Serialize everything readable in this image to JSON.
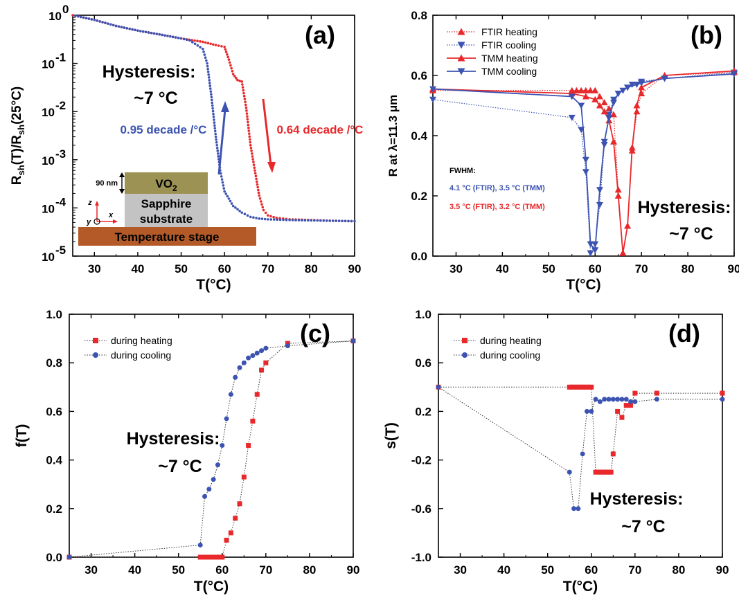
{
  "colors": {
    "heating": "#e8282b",
    "cooling": "#3c53b2",
    "stage": "#b45a28",
    "vo2": "#9b9253",
    "sapphire": "#c3c3c3",
    "axis": "#000000"
  },
  "figure": {
    "a": {
      "panel_label": "(a)",
      "xlabel": "T(°C)",
      "ylabel_main": "R",
      "ylabel_sub1": "sh",
      "ylabel_mid": "(T)/R",
      "ylabel_sub2": "sh",
      "ylabel_end": "(25°C)",
      "xtick_labels": [
        "30",
        "40",
        "50",
        "60",
        "70",
        "80",
        "90"
      ],
      "ytick_base": "10",
      "ytick_exponents": [
        "0",
        "-1",
        "-2",
        "-3",
        "-4",
        "-5"
      ],
      "hysteresis_line1": "Hysteresis:",
      "hysteresis_line2": "~7 °C",
      "cooling_rate": "0.95 decade /°C",
      "heating_rate": "0.64 decade /°C",
      "inset": {
        "thickness": "90 nm",
        "vo2_label": "VO",
        "vo2_sub": "2",
        "sapphire_line1": "Sapphire",
        "sapphire_line2": "substrate",
        "stage_label": "Temperature stage",
        "axis_z": "z",
        "axis_x": "x",
        "axis_y": "y"
      }
    },
    "b": {
      "panel_label": "(b)",
      "xlabel": "T(°C)",
      "ylabel": "R at λ=11.3 μm",
      "xtick_labels": [
        "30",
        "40",
        "50",
        "60",
        "70",
        "80",
        "90"
      ],
      "ytick_labels": [
        "0.0",
        "0.2",
        "0.4",
        "0.6",
        "0.8"
      ],
      "legend": [
        "FTIR heating",
        "FTIR cooling",
        "TMM heating",
        "TMM  cooling"
      ],
      "fwhm_title": "FWHM:",
      "fwhm_cooling": "4.1 °C (FTIR), 3.5 °C (TMM)",
      "fwhm_heating": "3.5 °C (FTIR), 3.2 °C (TMM)",
      "hysteresis_line1": "Hysteresis:",
      "hysteresis_line2": "~7 °C"
    },
    "c": {
      "panel_label": "(c)",
      "xlabel": "T(°C)",
      "ylabel": "f(T)",
      "xtick_labels": [
        "30",
        "40",
        "50",
        "60",
        "70",
        "80",
        "90"
      ],
      "ytick_labels": [
        "0.0",
        "0.2",
        "0.4",
        "0.6",
        "0.8",
        "1.0"
      ],
      "legend": [
        "during heating",
        "during cooling"
      ],
      "hysteresis_line1": "Hysteresis:",
      "hysteresis_line2": "~7 °C"
    },
    "d": {
      "panel_label": "(d)",
      "xlabel": "T(°C)",
      "ylabel": "s(T)",
      "xtick_labels": [
        "30",
        "40",
        "50",
        "60",
        "70",
        "80",
        "90"
      ],
      "ytick_labels": [
        "-1.0",
        "-0.6",
        "-0.2",
        "0.2",
        "0.6",
        "1.0"
      ],
      "legend": [
        "during heating",
        "during cooling"
      ],
      "hysteresis_line1": "Hysteresis:",
      "hysteresis_line2": "~7 °C"
    }
  },
  "chart_data": [
    {
      "id": "a",
      "type": "scatter",
      "yscale": "log",
      "xlim": [
        25,
        90
      ],
      "ylim": [
        1e-05,
        1
      ],
      "xlabel": "T(°C)",
      "ylabel": "Rsh(T)/Rsh(25°C)",
      "series": [
        {
          "name": "heating",
          "color": "#e8282b",
          "x": [
            25,
            30,
            35,
            40,
            45,
            50,
            55,
            58,
            60,
            61,
            62,
            63,
            64,
            65,
            66,
            67,
            68,
            69,
            70,
            72,
            75,
            80,
            85,
            90
          ],
          "y": [
            1,
            0.8,
            0.6,
            0.48,
            0.4,
            0.33,
            0.28,
            0.24,
            0.22,
            0.12,
            0.06,
            0.045,
            0.042,
            0.012,
            0.002,
            0.0006,
            0.00018,
            9e-05,
            7e-05,
            6.2e-05,
            5.8e-05,
            5.6e-05,
            5.4e-05,
            5.3e-05
          ]
        },
        {
          "name": "cooling",
          "color": "#3c53b2",
          "x": [
            90,
            85,
            80,
            75,
            70,
            68,
            66,
            64,
            62,
            60,
            59,
            58,
            57,
            56,
            55,
            52,
            50,
            45,
            40,
            35,
            30,
            25
          ],
          "y": [
            5.3e-05,
            5.4e-05,
            5.5e-05,
            5.6e-05,
            5.8e-05,
            6e-05,
            6.5e-05,
            8e-05,
            0.00011,
            0.00022,
            0.0006,
            0.003,
            0.02,
            0.1,
            0.2,
            0.3,
            0.33,
            0.4,
            0.48,
            0.6,
            0.8,
            1
          ]
        }
      ]
    },
    {
      "id": "b",
      "type": "line",
      "xlim": [
        25,
        90
      ],
      "ylim": [
        0,
        0.8
      ],
      "xlabel": "T(°C)",
      "ylabel": "R at λ=11.3 μm",
      "series": [
        {
          "name": "FTIR heating",
          "color": "#e8282b",
          "style": "dotted",
          "x": [
            25,
            55,
            56,
            57,
            58,
            59,
            60,
            61,
            62,
            63,
            64,
            65,
            66,
            67,
            68,
            69,
            70,
            75,
            90
          ],
          "y": [
            0.55,
            0.55,
            0.55,
            0.55,
            0.55,
            0.55,
            0.55,
            0.53,
            0.51,
            0.49,
            0.47,
            0.22,
            0.01,
            0.1,
            0.35,
            0.48,
            0.54,
            0.6,
            0.61
          ]
        },
        {
          "name": "FTIR cooling",
          "color": "#3c53b2",
          "style": "dotted",
          "x": [
            90,
            75,
            70,
            69,
            68,
            67,
            66,
            65,
            64,
            63,
            62,
            61,
            60,
            59,
            58,
            57,
            55,
            25
          ],
          "y": [
            0.61,
            0.59,
            0.58,
            0.57,
            0.57,
            0.56,
            0.55,
            0.54,
            0.52,
            0.47,
            0.37,
            0.17,
            0.04,
            0.01,
            0.28,
            0.42,
            0.46,
            0.52
          ]
        },
        {
          "name": "TMM heating",
          "color": "#e8282b",
          "style": "solid",
          "x": [
            25,
            55,
            58,
            60,
            61,
            62,
            63,
            64,
            65,
            66,
            67,
            68,
            69,
            70,
            75,
            90
          ],
          "y": [
            0.555,
            0.54,
            0.53,
            0.52,
            0.5,
            0.48,
            0.45,
            0.38,
            0.2,
            0.01,
            0.1,
            0.36,
            0.5,
            0.56,
            0.6,
            0.615
          ]
        },
        {
          "name": "TMM  cooling",
          "color": "#3c53b2",
          "style": "solid",
          "x": [
            90,
            75,
            70,
            67,
            65,
            64,
            63,
            62,
            61,
            60,
            59,
            58,
            57,
            55,
            25
          ],
          "y": [
            0.605,
            0.59,
            0.575,
            0.56,
            0.54,
            0.51,
            0.46,
            0.38,
            0.22,
            0.02,
            0.04,
            0.32,
            0.5,
            0.53,
            0.555
          ]
        }
      ],
      "legend_position": "top-left"
    },
    {
      "id": "c",
      "type": "line",
      "xlim": [
        25,
        90
      ],
      "ylim": [
        0,
        1.0
      ],
      "xlabel": "T(°C)",
      "ylabel": "f(T)",
      "series": [
        {
          "name": "during heating",
          "color": "#e8282b",
          "marker": "square",
          "x": [
            25,
            55,
            55.5,
            56,
            56.5,
            57,
            57.5,
            58,
            58.5,
            59,
            59.5,
            60,
            61,
            62,
            63,
            64,
            65,
            66,
            67,
            68,
            69,
            70,
            75,
            90
          ],
          "y": [
            0,
            0,
            0,
            0,
            0,
            0,
            0,
            0,
            0,
            0,
            0,
            0,
            0.07,
            0.1,
            0.16,
            0.22,
            0.33,
            0.46,
            0.56,
            0.67,
            0.77,
            0.8,
            0.88,
            0.89
          ]
        },
        {
          "name": "during cooling",
          "color": "#3c53b2",
          "marker": "circle",
          "x": [
            90,
            75,
            70,
            69,
            68,
            67,
            66,
            65,
            64,
            63,
            62,
            61,
            60,
            59,
            58,
            57,
            56,
            55,
            25
          ],
          "y": [
            0.89,
            0.87,
            0.86,
            0.85,
            0.84,
            0.83,
            0.82,
            0.8,
            0.78,
            0.74,
            0.67,
            0.57,
            0.46,
            0.38,
            0.32,
            0.28,
            0.25,
            0.05,
            0
          ]
        }
      ],
      "legend_position": "top-left"
    },
    {
      "id": "d",
      "type": "line",
      "xlim": [
        25,
        90
      ],
      "ylim": [
        -1.0,
        1.0
      ],
      "xlabel": "T(°C)",
      "ylabel": "s(T)",
      "series": [
        {
          "name": "during heating",
          "color": "#e8282b",
          "marker": "square",
          "x": [
            25,
            55,
            55.5,
            56,
            56.5,
            57,
            57.5,
            58,
            58.5,
            59,
            59.5,
            60,
            61,
            61.5,
            62,
            62.5,
            63,
            63.5,
            64,
            64.5,
            65,
            66,
            67,
            68,
            69,
            70,
            75,
            90
          ],
          "y": [
            0.4,
            0.4,
            0.4,
            0.4,
            0.4,
            0.4,
            0.4,
            0.4,
            0.4,
            0.4,
            0.4,
            0.4,
            -0.3,
            -0.3,
            -0.3,
            -0.3,
            -0.3,
            -0.3,
            -0.3,
            -0.3,
            -0.15,
            0.2,
            0.15,
            0.25,
            0.25,
            0.35,
            0.35,
            0.35
          ]
        },
        {
          "name": "during cooling",
          "color": "#3c53b2",
          "marker": "circle",
          "x": [
            90,
            75,
            70,
            69,
            68,
            67,
            66,
            65,
            64,
            63,
            62,
            61,
            60,
            59,
            58,
            57,
            56,
            55,
            25
          ],
          "y": [
            0.3,
            0.3,
            0.28,
            0.28,
            0.3,
            0.3,
            0.3,
            0.3,
            0.3,
            0.3,
            0.28,
            0.3,
            0.2,
            0.2,
            -0.15,
            -0.6,
            -0.6,
            -0.3,
            0.4
          ]
        }
      ],
      "legend_position": "top-left"
    }
  ]
}
